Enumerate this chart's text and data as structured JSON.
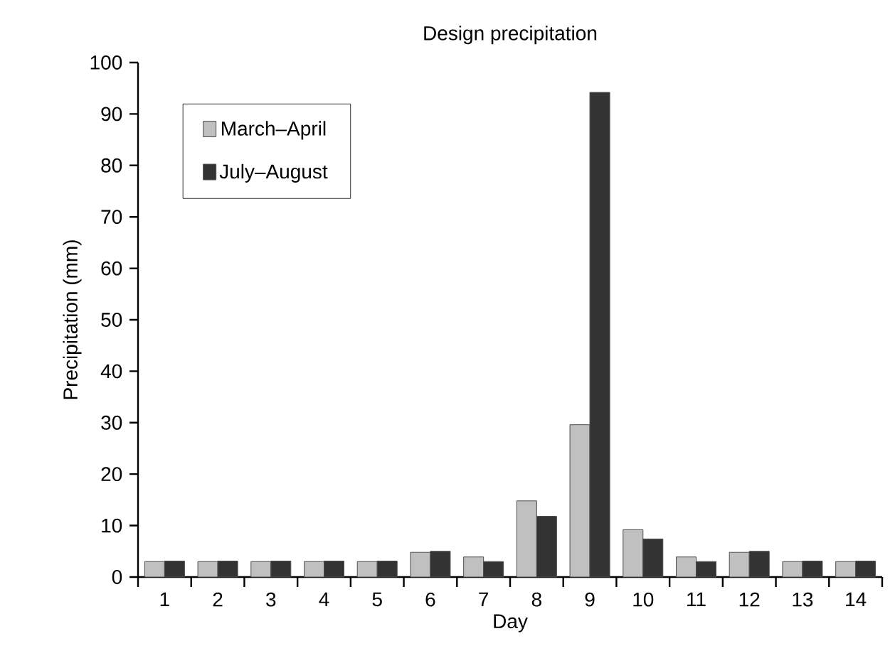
{
  "chart_data": {
    "type": "bar",
    "title": "Design precipitation",
    "xlabel": "Day",
    "ylabel": "Precipitation (mm)",
    "categories": [
      "1",
      "2",
      "3",
      "4",
      "5",
      "6",
      "7",
      "8",
      "9",
      "10",
      "11",
      "12",
      "13",
      "14"
    ],
    "series": [
      {
        "name": "March–April",
        "color": "#c0c0c0",
        "values": [
          3,
          3,
          3,
          3,
          3,
          4.8,
          3.9,
          14.8,
          29.6,
          9.2,
          3.9,
          4.8,
          3,
          3
        ]
      },
      {
        "name": "July–August",
        "color": "#333333",
        "values": [
          3.1,
          3.1,
          3.1,
          3.1,
          3.1,
          5,
          3,
          11.8,
          94.2,
          7.4,
          3,
          5,
          3.1,
          3.1
        ]
      }
    ],
    "ylim": [
      0,
      100
    ],
    "yticks": [
      0,
      10,
      20,
      30,
      40,
      50,
      60,
      70,
      80,
      90,
      100
    ],
    "grid": false,
    "legend": "top left"
  }
}
